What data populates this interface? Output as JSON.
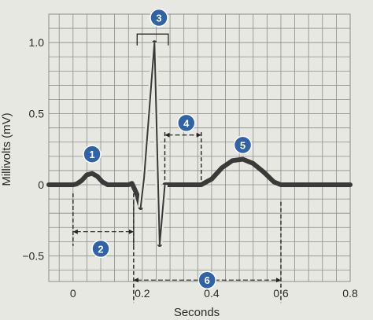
{
  "chart_data": {
    "type": "line",
    "xlabel": "Seconds",
    "ylabel": "Millivolts (mV)",
    "xlim": [
      -0.07,
      0.8
    ],
    "ylim": [
      -0.68,
      1.2
    ],
    "x_ticks": [
      {
        "value": 0,
        "label": "0"
      },
      {
        "value": 0.2,
        "label": "0.2"
      },
      {
        "value": 0.4,
        "label": "0.4"
      },
      {
        "value": 0.6,
        "label": "0.6"
      },
      {
        "value": 0.8,
        "label": "0.8"
      }
    ],
    "y_ticks": [
      {
        "value": 1.0,
        "label": "1.0"
      },
      {
        "value": 0.5,
        "label": "0.5"
      },
      {
        "value": 0,
        "label": "0"
      },
      {
        "value": -0.5,
        "label": "−0.5"
      }
    ],
    "grid": true,
    "series": [
      {
        "x": [
          -0.07,
          0.0,
          0.01,
          0.025,
          0.04,
          0.055,
          0.07,
          0.085,
          0.1,
          0.16,
          0.17,
          0.185,
          0.195,
          0.205,
          0.235,
          0.25,
          0.265,
          0.37,
          0.4,
          0.43,
          0.46,
          0.49,
          0.52,
          0.55,
          0.58,
          0.6,
          0.8
        ],
        "y": [
          0,
          0,
          0.005,
          0.03,
          0.07,
          0.08,
          0.06,
          0.02,
          0,
          0,
          0.01,
          -0.07,
          -0.16,
          0.05,
          1.0,
          -0.42,
          0,
          0,
          0.04,
          0.12,
          0.17,
          0.18,
          0.15,
          0.09,
          0.02,
          0,
          0
        ]
      }
    ],
    "annotations": [
      {
        "label": "1",
        "x": 0.055,
        "y": 0.215
      },
      {
        "label": "2",
        "x": 0.08,
        "y": -0.45
      },
      {
        "label": "3",
        "x": 0.248,
        "y": 1.175
      },
      {
        "label": "4",
        "x": 0.327,
        "y": 0.435
      },
      {
        "label": "5",
        "x": 0.49,
        "y": 0.28
      },
      {
        "label": "6",
        "x": 0.387,
        "y": -0.67
      }
    ],
    "intervals": [
      {
        "label": "2",
        "x1": 0.0,
        "x2": 0.175,
        "y": -0.33,
        "tick_top": -0.06,
        "tick_bottom": -0.43
      },
      {
        "label": "4",
        "x1": 0.265,
        "x2": 0.37,
        "y": 0.35,
        "tick_top": 0.37,
        "tick_bottom": 0.0
      },
      {
        "label": "6",
        "x1": 0.175,
        "x2": 0.6,
        "y": -0.67,
        "tick_top": -0.12,
        "tick_bottom": -0.83
      },
      {
        "label": "3",
        "x1": 0.185,
        "x2": 0.275,
        "y": 1.06,
        "tick_top": 1.06,
        "tick_bottom": 0.98
      }
    ],
    "colors": {
      "background": "#e8e8e3",
      "grid": "#8c8c8c",
      "trace": "#3a3a3a",
      "badge": "#2f62a6",
      "annotation": "#222222"
    }
  }
}
